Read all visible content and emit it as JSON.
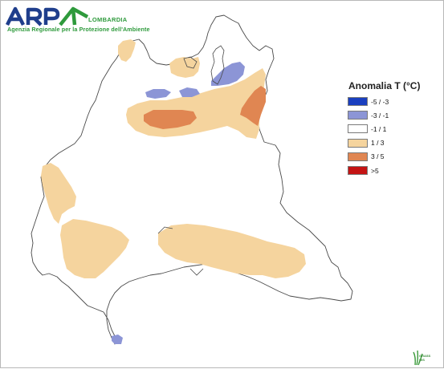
{
  "logo": {
    "name": "ARPA",
    "region": "LOMBARDIA",
    "subtitle": "Agenzia Regionale per la Protezione dell'Ambiente"
  },
  "legend": {
    "title": "Anomalia T (°C)",
    "items": [
      {
        "label": "-5 / -3",
        "color": "#1a3fbf"
      },
      {
        "label": "-3 / -1",
        "color": "#8c95d6"
      },
      {
        "label": "-1 / 1",
        "color": "#ffffff"
      },
      {
        "label": "1 / 3",
        "color": "#f5d49e"
      },
      {
        "label": "3 / 5",
        "color": "#e08652"
      },
      {
        "label": ">5",
        "color": "#c41414"
      }
    ]
  },
  "footer": {
    "software_name": "GRASS GIS"
  }
}
